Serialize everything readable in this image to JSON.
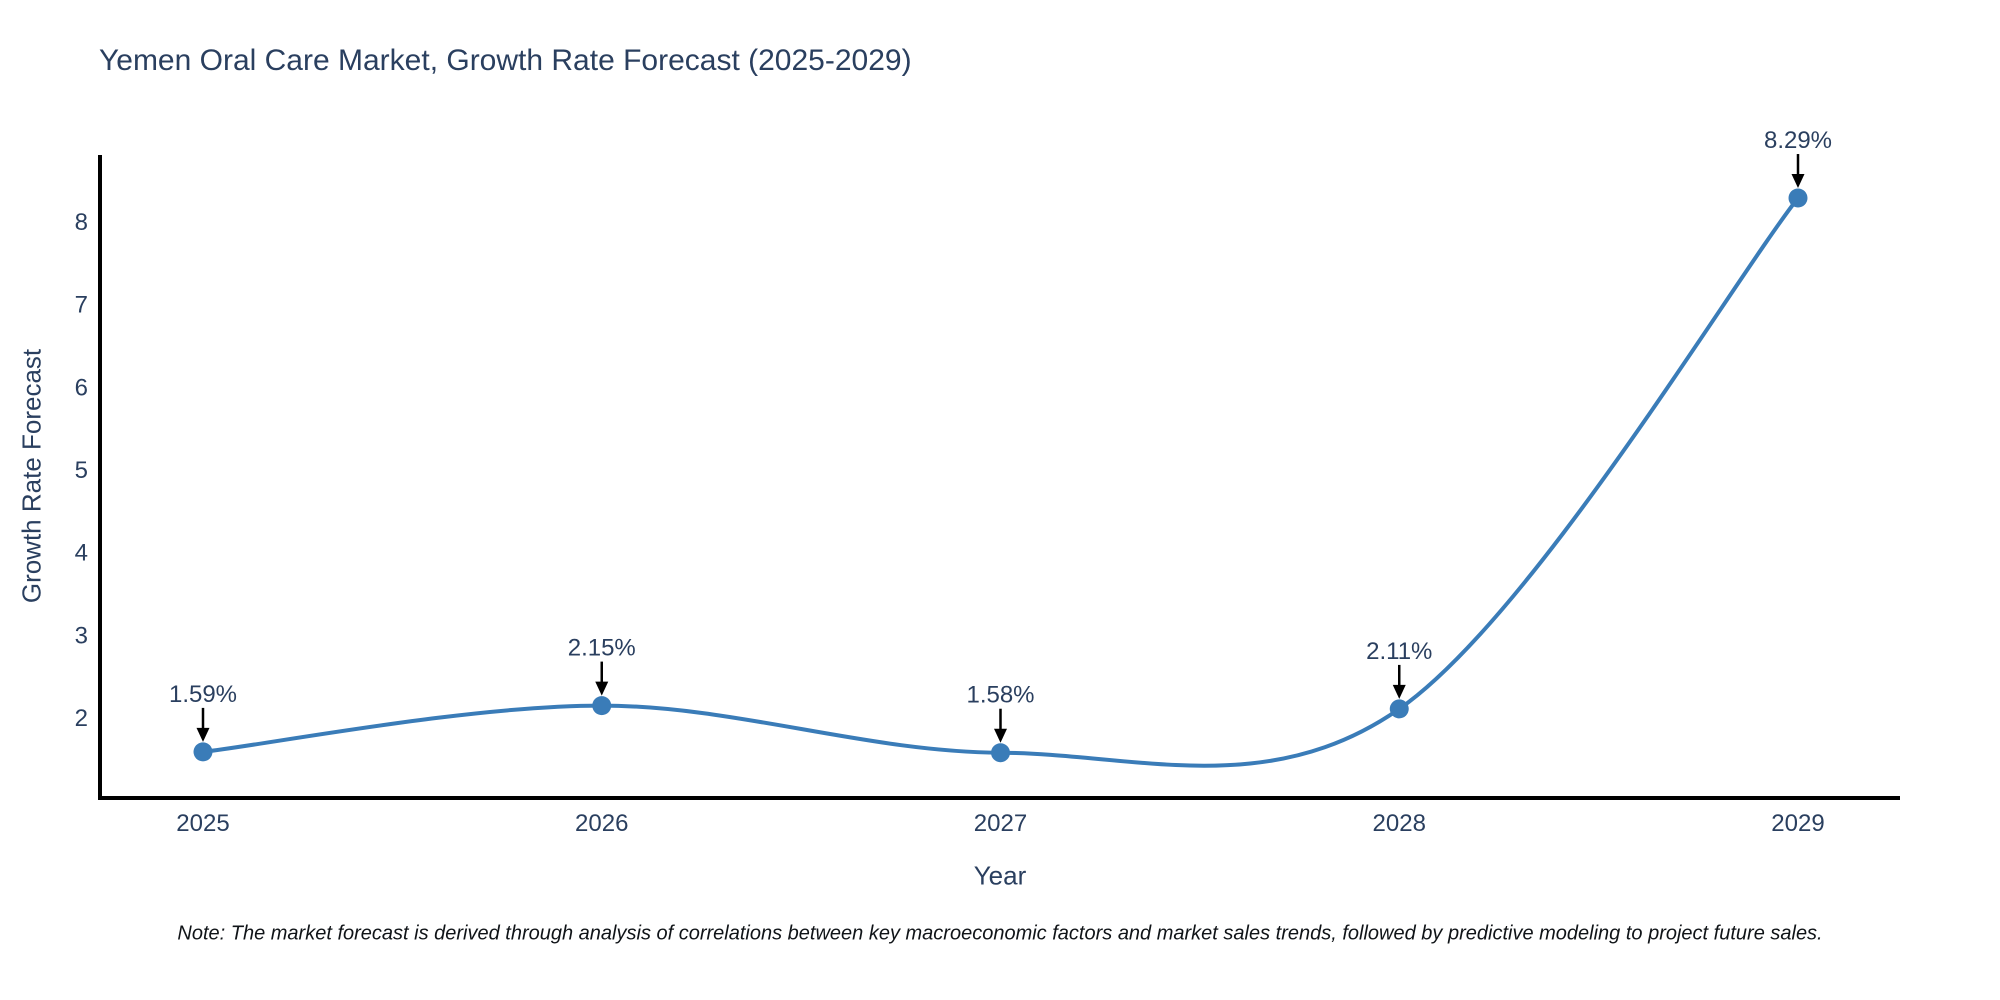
{
  "title": "Yemen Oral Care Market, Growth Rate Forecast (2025-2029)",
  "note": "Note: The market forecast is derived through analysis of correlations between key macroeconomic factors and market sales trends, followed by predictive modeling to project future sales.",
  "chart_data": {
    "type": "line",
    "title": "Yemen Oral Care Market, Growth Rate Forecast (2025-2029)",
    "xlabel": "Year",
    "ylabel": "Growth Rate Forecast",
    "x": [
      2025,
      2026,
      2027,
      2028,
      2029
    ],
    "series": [
      {
        "name": "Growth Rate Forecast",
        "values": [
          1.59,
          2.15,
          1.58,
          2.11,
          8.29
        ]
      }
    ],
    "annotations": [
      "1.59%",
      "2.15%",
      "1.58%",
      "2.11%",
      "8.29%"
    ],
    "yticks": [
      2,
      3,
      4,
      5,
      6,
      7,
      8
    ],
    "xticks": [
      2025,
      2026,
      2027,
      2028,
      2029
    ],
    "ylim": [
      1.03,
      8.81
    ],
    "xlim": [
      2024.74,
      2029.26
    ],
    "grid": false,
    "legend": "none",
    "line_shape": "spline",
    "colors": {
      "line": "#3a7cb8",
      "marker": "#3a7cb8",
      "axis_line": "#000000",
      "tick_text": "#2a3f5f",
      "annotation_text": "#2a3f5f",
      "annotation_arrow": "#000000"
    }
  }
}
